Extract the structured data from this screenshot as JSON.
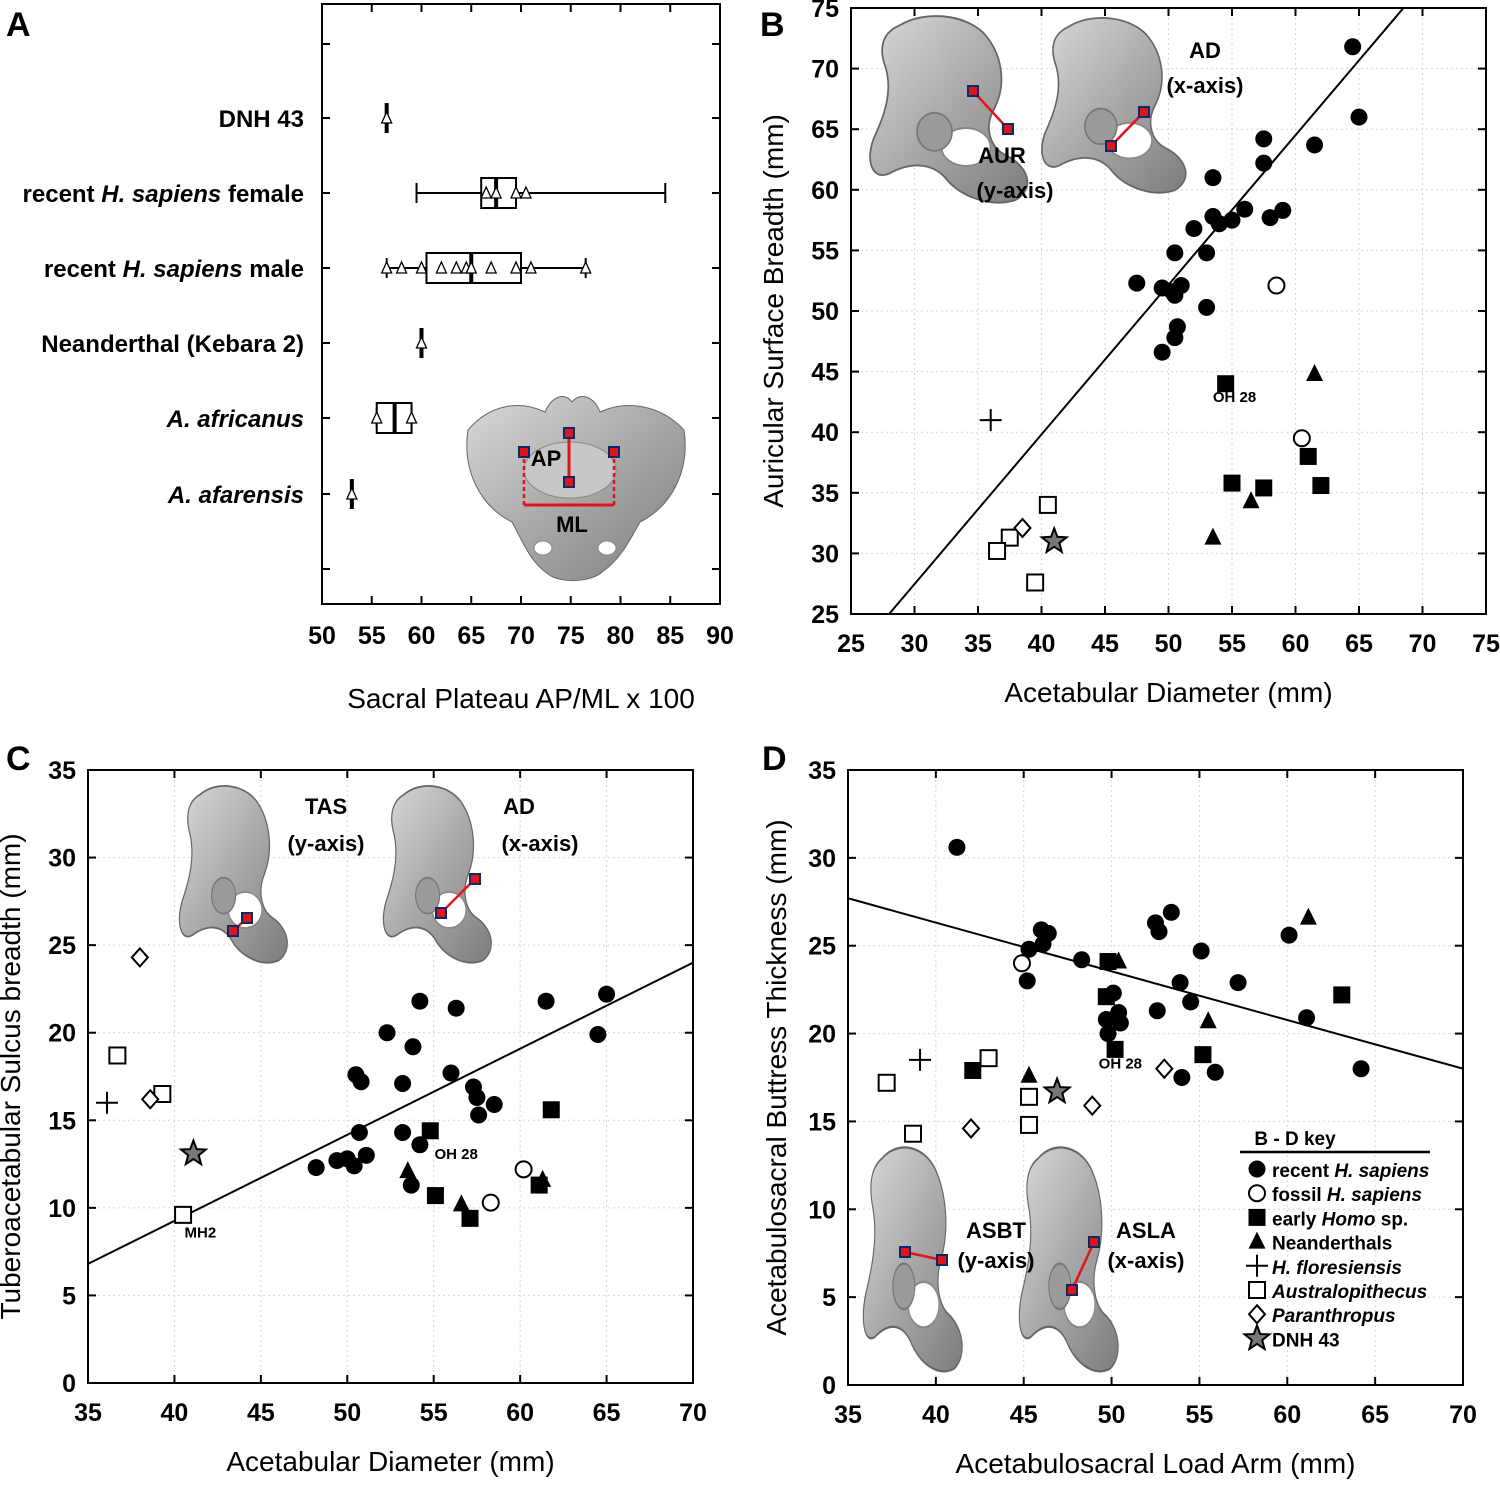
{
  "legend": {
    "title": "B - D key",
    "items": [
      {
        "marker": "circle-filled",
        "label": "recent H. sapiens",
        "pre": "recent ",
        "ital": "H. sapiens",
        "post": ""
      },
      {
        "marker": "circle-open",
        "label": "fossil H. sapiens",
        "pre": "fossil ",
        "ital": "H. sapiens",
        "post": ""
      },
      {
        "marker": "square-filled",
        "label": "early Homo sp.",
        "pre": "early ",
        "ital": "Homo",
        "post": " sp."
      },
      {
        "marker": "triangle-filled",
        "label": "Neanderthals",
        "pre": "Neanderthals",
        "ital": "",
        "post": ""
      },
      {
        "marker": "plus",
        "label": "H. floresiensis",
        "pre": "",
        "ital": "H. floresiensis",
        "post": ""
      },
      {
        "marker": "square-open",
        "label": "Australopithecus",
        "pre": "",
        "ital": "Australopithecus",
        "post": ""
      },
      {
        "marker": "diamond-open",
        "label": "Paranthropus",
        "pre": "",
        "ital": "Paranthropus",
        "post": ""
      },
      {
        "marker": "star",
        "label": "DNH 43",
        "pre": "DNH 43",
        "ital": "",
        "post": ""
      }
    ]
  },
  "chart_data": [
    {
      "panel": "A",
      "type": "box",
      "orientation": "horizontal",
      "xlabel": "Sacral Plateau  AP/ML x 100",
      "xlim": [
        50,
        90
      ],
      "xticks": [
        50,
        55,
        60,
        65,
        70,
        75,
        80,
        85,
        90
      ],
      "image_labels": [
        "AP",
        "ML"
      ],
      "groups": [
        {
          "label": "DNH 43",
          "pre": "",
          "ital": "",
          "post": "DNH 43",
          "median": 56.5,
          "points": [
            56.5
          ]
        },
        {
          "label": "recent H. sapiens female",
          "pre": "recent ",
          "ital": "H. sapiens",
          "post": " female",
          "whisker": [
            59.5,
            84.5
          ],
          "box": [
            66,
            69.5
          ],
          "median": 67.5,
          "points": [
            66.5,
            67.5,
            69.5,
            70.5
          ]
        },
        {
          "label": "recent H. sapiens male",
          "pre": "recent ",
          "ital": "H. sapiens",
          "post": " male",
          "whisker": [
            56.5,
            76.5
          ],
          "box": [
            60.5,
            70
          ],
          "median": 65,
          "points": [
            56.5,
            58,
            60,
            62,
            63.5,
            64.5,
            65,
            67,
            69.5,
            71,
            76.5
          ]
        },
        {
          "label": "Neanderthal (Kebara 2)",
          "pre": "",
          "ital": "",
          "post": "Neanderthal (Kebara 2)",
          "median": 60,
          "points": [
            60
          ]
        },
        {
          "label": "A. africanus",
          "pre": "",
          "ital": "A. africanus",
          "post": "",
          "whisker": [
            55.5,
            59
          ],
          "box": [
            55.5,
            59
          ],
          "median": 57.3,
          "points": [
            55.5,
            59
          ]
        },
        {
          "label": "A. afarensis",
          "pre": "",
          "ital": "A. afarensis",
          "post": "",
          "median": 53,
          "points": [
            53
          ]
        }
      ]
    },
    {
      "panel": "B",
      "type": "scatter",
      "xlabel": "Acetabular Diameter (mm)",
      "ylabel": "Auricular Surface Breadth (mm)",
      "xlim": [
        25,
        75
      ],
      "ylim": [
        25,
        75
      ],
      "xticks": [
        25,
        30,
        35,
        40,
        45,
        50,
        55,
        60,
        65,
        70,
        75
      ],
      "yticks": [
        25,
        30,
        35,
        40,
        45,
        50,
        55,
        60,
        65,
        70,
        75
      ],
      "fit_line": [
        [
          28,
          25
        ],
        [
          68.5,
          75
        ]
      ],
      "image_labels": [
        "AD",
        "(x-axis)",
        "AUR",
        "(y-axis)"
      ],
      "annotations": [
        {
          "text": "OH 28",
          "x": 55.2,
          "y": 42.5
        }
      ],
      "series": [
        {
          "name": "recent H. sapiens",
          "marker": "circle-filled",
          "points": [
            [
              64.5,
              71.8
            ],
            [
              65,
              66
            ],
            [
              61.5,
              63.7
            ],
            [
              57.5,
              64.2
            ],
            [
              57.5,
              62.2
            ],
            [
              53.5,
              61
            ],
            [
              58,
              57.7
            ],
            [
              59,
              58.3
            ],
            [
              56,
              58.4
            ],
            [
              54,
              57.2
            ],
            [
              55,
              57.5
            ],
            [
              53.5,
              57.8
            ],
            [
              52,
              56.8
            ],
            [
              53,
              54.8
            ],
            [
              50.5,
              54.8
            ],
            [
              47.5,
              52.3
            ],
            [
              49.5,
              51.9
            ],
            [
              50.3,
              51.6
            ],
            [
              51,
              52.1
            ],
            [
              50.5,
              51.3
            ],
            [
              53,
              50.3
            ],
            [
              50.7,
              48.7
            ],
            [
              50.5,
              47.8
            ],
            [
              49.5,
              46.6
            ]
          ]
        },
        {
          "name": "fossil H. sapiens",
          "marker": "circle-open",
          "points": [
            [
              58.5,
              52.1
            ],
            [
              60.5,
              39.5
            ]
          ]
        },
        {
          "name": "early Homo sp.",
          "marker": "square-filled",
          "points": [
            [
              54.5,
              44
            ],
            [
              55,
              35.8
            ],
            [
              57.5,
              35.4
            ],
            [
              61,
              38
            ],
            [
              62,
              35.6
            ]
          ]
        },
        {
          "name": "Neanderthals",
          "marker": "triangle-filled",
          "points": [
            [
              61.5,
              44.8
            ],
            [
              56.5,
              34.3
            ],
            [
              53.5,
              31.3
            ]
          ]
        },
        {
          "name": "H. floresiensis",
          "marker": "plus",
          "points": [
            [
              36,
              41
            ]
          ]
        },
        {
          "name": "Australopithecus",
          "marker": "square-open",
          "points": [
            [
              40.5,
              34
            ],
            [
              37.5,
              31.3
            ],
            [
              36.5,
              30.2
            ],
            [
              39.5,
              27.6
            ]
          ]
        },
        {
          "name": "Paranthropus",
          "marker": "diamond-open",
          "points": [
            [
              38.5,
              32.1
            ]
          ]
        },
        {
          "name": "DNH 43",
          "marker": "star",
          "points": [
            [
              41,
              31
            ]
          ]
        }
      ]
    },
    {
      "panel": "C",
      "type": "scatter",
      "xlabel": "Acetabular Diameter (mm)",
      "ylabel": "Tuberoacetabular Sulcus breadth (mm)",
      "xlim": [
        35,
        70
      ],
      "ylim": [
        0,
        35
      ],
      "xticks": [
        35,
        40,
        45,
        50,
        55,
        60,
        65,
        70
      ],
      "yticks": [
        0,
        5,
        10,
        15,
        20,
        25,
        30,
        35
      ],
      "fit_line": [
        [
          35,
          6.8
        ],
        [
          70,
          24
        ]
      ],
      "image_labels": [
        "TAS",
        "(y-axis)",
        "AD",
        "(x-axis)"
      ],
      "annotations": [
        {
          "text": "OH 28",
          "x": 56.3,
          "y": 12.8
        },
        {
          "text": "MH2",
          "x": 41.5,
          "y": 8.3
        }
      ],
      "series": [
        {
          "name": "recent H. sapiens",
          "marker": "circle-filled",
          "points": [
            [
              65,
              22.2
            ],
            [
              64.5,
              19.9
            ],
            [
              61.5,
              21.8
            ],
            [
              54.2,
              21.8
            ],
            [
              56.3,
              21.4
            ],
            [
              52.3,
              20
            ],
            [
              53.8,
              19.2
            ],
            [
              50.5,
              17.6
            ],
            [
              50.8,
              17.2
            ],
            [
              53.2,
              17.1
            ],
            [
              56,
              17.7
            ],
            [
              57.3,
              16.9
            ],
            [
              57.5,
              16.3
            ],
            [
              58.5,
              15.9
            ],
            [
              57.6,
              15.3
            ],
            [
              50.7,
              14.3
            ],
            [
              53.2,
              14.3
            ],
            [
              54.2,
              13.6
            ],
            [
              48.2,
              12.3
            ],
            [
              49.4,
              12.7
            ],
            [
              50,
              12.8
            ],
            [
              50.4,
              12.4
            ],
            [
              51.1,
              13
            ],
            [
              53.7,
              11.3
            ]
          ]
        },
        {
          "name": "fossil H. sapiens",
          "marker": "circle-open",
          "points": [
            [
              60.2,
              12.2
            ],
            [
              58.3,
              10.3
            ]
          ]
        },
        {
          "name": "early Homo sp.",
          "marker": "square-filled",
          "points": [
            [
              54.8,
              14.4
            ],
            [
              61.8,
              15.6
            ],
            [
              55.1,
              10.7
            ],
            [
              57.1,
              9.4
            ],
            [
              61.1,
              11.3
            ]
          ]
        },
        {
          "name": "Neanderthals",
          "marker": "triangle-filled",
          "points": [
            [
              53.5,
              12.1
            ],
            [
              56.6,
              10.2
            ],
            [
              61.3,
              11.6
            ]
          ]
        },
        {
          "name": "H. floresiensis",
          "marker": "plus",
          "points": [
            [
              36.1,
              16
            ]
          ]
        },
        {
          "name": "Australopithecus",
          "marker": "square-open",
          "points": [
            [
              36.7,
              18.7
            ],
            [
              39.3,
              16.5
            ],
            [
              40.5,
              9.6
            ]
          ]
        },
        {
          "name": "Paranthropus",
          "marker": "diamond-open",
          "points": [
            [
              38,
              24.3
            ],
            [
              38.6,
              16.2
            ]
          ]
        },
        {
          "name": "DNH 43",
          "marker": "star",
          "points": [
            [
              41.1,
              13.1
            ]
          ]
        }
      ]
    },
    {
      "panel": "D",
      "type": "scatter",
      "xlabel": "Acetabulosacral Load Arm (mm)",
      "ylabel": "Acetabulosacral Buttress Thickness (mm)",
      "xlim": [
        35,
        70
      ],
      "ylim": [
        0,
        35
      ],
      "xticks": [
        35,
        40,
        45,
        50,
        55,
        60,
        65,
        70
      ],
      "yticks": [
        0,
        5,
        10,
        15,
        20,
        25,
        30,
        35
      ],
      "fit_line": [
        [
          35,
          27.7
        ],
        [
          70,
          18
        ]
      ],
      "image_labels": [
        "ASBT",
        "(y-axis)",
        "ASLA",
        "(x-axis)"
      ],
      "annotations": [
        {
          "text": "OH 28",
          "x": 50.5,
          "y": 18
        }
      ],
      "series": [
        {
          "name": "recent H. sapiens",
          "marker": "circle-filled",
          "points": [
            [
              41.2,
              30.6
            ],
            [
              46,
              25.9
            ],
            [
              46.4,
              25.7
            ],
            [
              46.1,
              25.1
            ],
            [
              45.3,
              24.8
            ],
            [
              48.3,
              24.2
            ],
            [
              52.5,
              26.3
            ],
            [
              52.7,
              25.8
            ],
            [
              53.4,
              26.9
            ],
            [
              55.1,
              24.7
            ],
            [
              60.1,
              25.6
            ],
            [
              45.2,
              23
            ],
            [
              50.1,
              22.3
            ],
            [
              49.7,
              20.8
            ],
            [
              50.5,
              20.6
            ],
            [
              49.8,
              20
            ],
            [
              50.4,
              21.2
            ],
            [
              52.6,
              21.3
            ],
            [
              53.9,
              22.9
            ],
            [
              54.5,
              21.8
            ],
            [
              57.2,
              22.9
            ],
            [
              61.1,
              20.9
            ],
            [
              54,
              17.5
            ],
            [
              55.9,
              17.8
            ],
            [
              64.2,
              18
            ]
          ]
        },
        {
          "name": "fossil H. sapiens",
          "marker": "circle-open",
          "points": [
            [
              44.9,
              24
            ]
          ]
        },
        {
          "name": "early Homo sp.",
          "marker": "square-filled",
          "points": [
            [
              49.7,
              22.1
            ],
            [
              50.2,
              19.1
            ],
            [
              55.2,
              18.8
            ],
            [
              63.1,
              22.2
            ],
            [
              42.1,
              17.9
            ],
            [
              49.8,
              24.1
            ]
          ]
        },
        {
          "name": "Neanderthals",
          "marker": "triangle-filled",
          "points": [
            [
              61.2,
              26.6
            ],
            [
              50.4,
              24.1
            ],
            [
              55.5,
              20.7
            ],
            [
              45.3,
              17.6
            ]
          ]
        },
        {
          "name": "H. floresiensis",
          "marker": "plus",
          "points": [
            [
              39.1,
              18.5
            ]
          ]
        },
        {
          "name": "Australopithecus",
          "marker": "square-open",
          "points": [
            [
              37.2,
              17.2
            ],
            [
              43,
              18.6
            ],
            [
              45.3,
              16.4
            ],
            [
              38.7,
              14.3
            ],
            [
              45.3,
              14.8
            ]
          ]
        },
        {
          "name": "Paranthropus",
          "marker": "diamond-open",
          "points": [
            [
              42,
              14.6
            ],
            [
              48.9,
              15.9
            ],
            [
              53,
              18
            ]
          ]
        },
        {
          "name": "DNH 43",
          "marker": "star",
          "points": [
            [
              46.9,
              16.7
            ]
          ]
        }
      ]
    }
  ]
}
